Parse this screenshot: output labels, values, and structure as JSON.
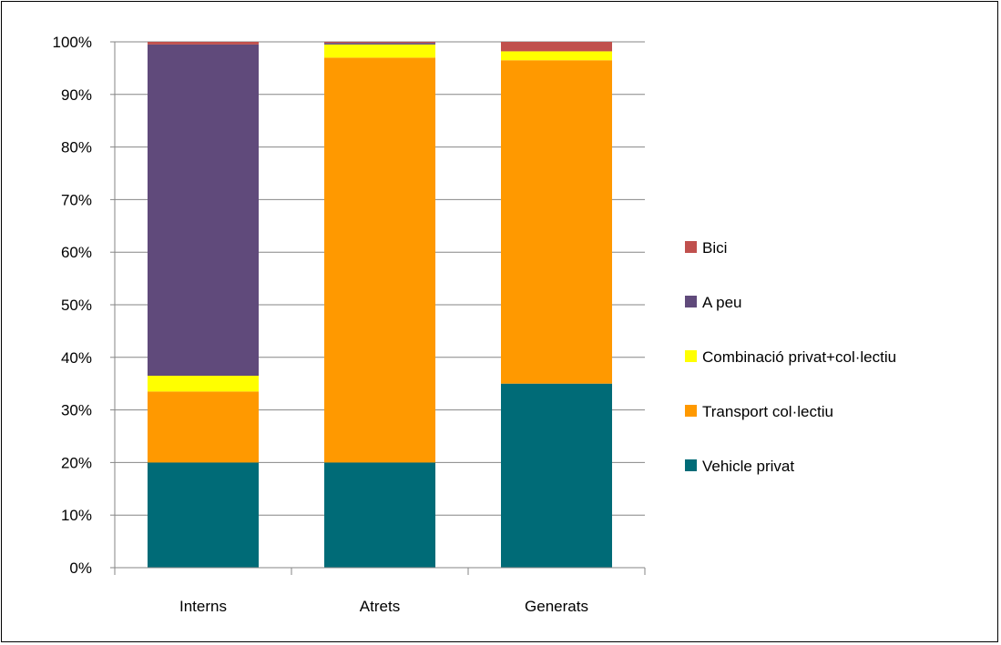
{
  "chart_data": {
    "type": "bar",
    "stacked": true,
    "percent": true,
    "title": "",
    "xlabel": "",
    "ylabel": "",
    "ylim": [
      0,
      100
    ],
    "y_ticks": [
      "0%",
      "10%",
      "20%",
      "30%",
      "40%",
      "50%",
      "60%",
      "70%",
      "80%",
      "90%",
      "100%"
    ],
    "categories": [
      "Interns",
      "Atrets",
      "Generats"
    ],
    "series": [
      {
        "name": "Vehicle privat",
        "color": "#006B77",
        "values": [
          20,
          20,
          35
        ]
      },
      {
        "name": "Transport col·lectiu",
        "color": "#FF9900",
        "values": [
          13.5,
          77,
          61.5
        ]
      },
      {
        "name": "Combinació privat+col·lectiu",
        "color": "#FFFF00",
        "values": [
          3,
          2.5,
          1.7
        ]
      },
      {
        "name": "A peu",
        "color": "#604A7B",
        "values": [
          63,
          0.3,
          0
        ]
      },
      {
        "name": "Bici",
        "color": "#C0504D",
        "values": [
          0.5,
          0.2,
          1.8
        ]
      }
    ],
    "legend_position": "right",
    "grid": true
  }
}
